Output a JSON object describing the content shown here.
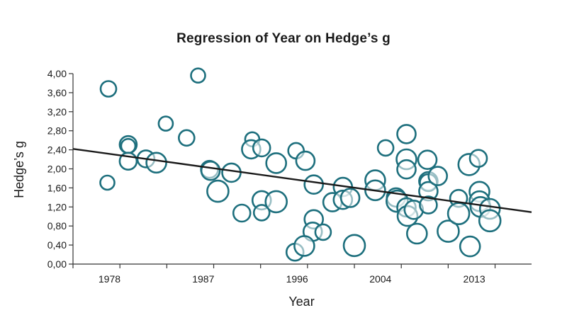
{
  "chart_data": {
    "type": "scatter",
    "title": "Regression of Year on Hedge’s g",
    "xlabel": "Year",
    "ylabel": "Hedge’s g",
    "xlim": [
      1974.5,
      2018.5
    ],
    "ylim": [
      0,
      4
    ],
    "x_ticks": [
      1978,
      1987,
      1996,
      2004,
      2013
    ],
    "x_tick_labels": [
      "1978",
      "1987",
      "1996",
      "2004",
      "2013"
    ],
    "y_ticks": [
      0,
      0.4,
      0.8,
      1.2,
      1.6,
      2.0,
      2.4,
      2.8,
      3.2,
      3.6,
      4.0
    ],
    "y_tick_labels": [
      "0,00",
      "0,40",
      "0,80",
      "1,20",
      "1,60",
      "2,00",
      "2,40",
      "2,80",
      "3,20",
      "3,60",
      "4,00"
    ],
    "grid": false,
    "legend": "none",
    "marker_color": "#1d6f7d",
    "line_color": "#1a1a1a",
    "regression_line": {
      "x": [
        1974.5,
        2018.5
      ],
      "y": [
        2.42,
        1.09
      ]
    },
    "points": [
      {
        "x": 1977.9,
        "y": 3.68,
        "size": 11
      },
      {
        "x": 1977.8,
        "y": 1.71,
        "size": 10
      },
      {
        "x": 1979.8,
        "y": 2.51,
        "size": 12
      },
      {
        "x": 1979.8,
        "y": 2.48,
        "size": 10
      },
      {
        "x": 1979.8,
        "y": 2.16,
        "size": 12
      },
      {
        "x": 1981.5,
        "y": 2.21,
        "size": 12
      },
      {
        "x": 1982.5,
        "y": 2.13,
        "size": 14
      },
      {
        "x": 1983.4,
        "y": 2.95,
        "size": 10
      },
      {
        "x": 1985.4,
        "y": 2.65,
        "size": 11
      },
      {
        "x": 1986.5,
        "y": 3.96,
        "size": 10
      },
      {
        "x": 1987.6,
        "y": 1.99,
        "size": 12
      },
      {
        "x": 1987.7,
        "y": 1.96,
        "size": 13
      },
      {
        "x": 1988.4,
        "y": 1.53,
        "size": 15
      },
      {
        "x": 1989.7,
        "y": 1.92,
        "size": 13
      },
      {
        "x": 1990.7,
        "y": 1.07,
        "size": 12
      },
      {
        "x": 1991.7,
        "y": 2.62,
        "size": 10
      },
      {
        "x": 1991.6,
        "y": 2.41,
        "size": 13
      },
      {
        "x": 1992.6,
        "y": 2.44,
        "size": 12
      },
      {
        "x": 1992.6,
        "y": 1.34,
        "size": 13
      },
      {
        "x": 1992.6,
        "y": 1.08,
        "size": 11
      },
      {
        "x": 1994.0,
        "y": 2.12,
        "size": 14
      },
      {
        "x": 1994.0,
        "y": 1.31,
        "size": 15
      },
      {
        "x": 1995.9,
        "y": 2.38,
        "size": 11
      },
      {
        "x": 1996.8,
        "y": 2.17,
        "size": 13
      },
      {
        "x": 1997.6,
        "y": 1.67,
        "size": 13
      },
      {
        "x": 1997.6,
        "y": 0.94,
        "size": 13
      },
      {
        "x": 1997.5,
        "y": 0.68,
        "size": 13
      },
      {
        "x": 1998.5,
        "y": 0.67,
        "size": 11
      },
      {
        "x": 1995.8,
        "y": 0.25,
        "size": 12
      },
      {
        "x": 1996.7,
        "y": 0.38,
        "size": 14
      },
      {
        "x": 1999.4,
        "y": 1.3,
        "size": 13
      },
      {
        "x": 2000.4,
        "y": 1.62,
        "size": 13
      },
      {
        "x": 2000.4,
        "y": 1.35,
        "size": 13
      },
      {
        "x": 2001.1,
        "y": 1.39,
        "size": 13
      },
      {
        "x": 2001.5,
        "y": 0.39,
        "size": 15
      },
      {
        "x": 2003.5,
        "y": 1.76,
        "size": 14
      },
      {
        "x": 2003.5,
        "y": 1.55,
        "size": 14
      },
      {
        "x": 2004.5,
        "y": 2.44,
        "size": 11
      },
      {
        "x": 2005.5,
        "y": 1.4,
        "size": 13
      },
      {
        "x": 2005.6,
        "y": 1.32,
        "size": 15
      },
      {
        "x": 2006.5,
        "y": 2.73,
        "size": 13
      },
      {
        "x": 2006.5,
        "y": 2.2,
        "size": 14
      },
      {
        "x": 2006.5,
        "y": 1.99,
        "size": 13
      },
      {
        "x": 2006.5,
        "y": 1.19,
        "size": 13
      },
      {
        "x": 2006.6,
        "y": 1.01,
        "size": 14
      },
      {
        "x": 2007.2,
        "y": 1.14,
        "size": 13
      },
      {
        "x": 2007.5,
        "y": 0.64,
        "size": 14
      },
      {
        "x": 2008.5,
        "y": 2.19,
        "size": 13
      },
      {
        "x": 2008.6,
        "y": 1.74,
        "size": 13
      },
      {
        "x": 2008.6,
        "y": 1.71,
        "size": 12
      },
      {
        "x": 2008.6,
        "y": 1.53,
        "size": 13
      },
      {
        "x": 2008.6,
        "y": 1.24,
        "size": 12
      },
      {
        "x": 2009.5,
        "y": 1.85,
        "size": 13
      },
      {
        "x": 2010.5,
        "y": 0.69,
        "size": 15
      },
      {
        "x": 2011.5,
        "y": 1.38,
        "size": 12
      },
      {
        "x": 2011.5,
        "y": 1.06,
        "size": 15
      },
      {
        "x": 2012.5,
        "y": 2.09,
        "size": 15
      },
      {
        "x": 2012.6,
        "y": 0.37,
        "size": 14
      },
      {
        "x": 2013.4,
        "y": 2.22,
        "size": 12
      },
      {
        "x": 2013.5,
        "y": 1.52,
        "size": 14
      },
      {
        "x": 2013.5,
        "y": 1.32,
        "size": 14
      },
      {
        "x": 2013.6,
        "y": 1.2,
        "size": 14
      },
      {
        "x": 2014.5,
        "y": 1.16,
        "size": 14
      },
      {
        "x": 2014.5,
        "y": 0.91,
        "size": 15
      }
    ]
  }
}
